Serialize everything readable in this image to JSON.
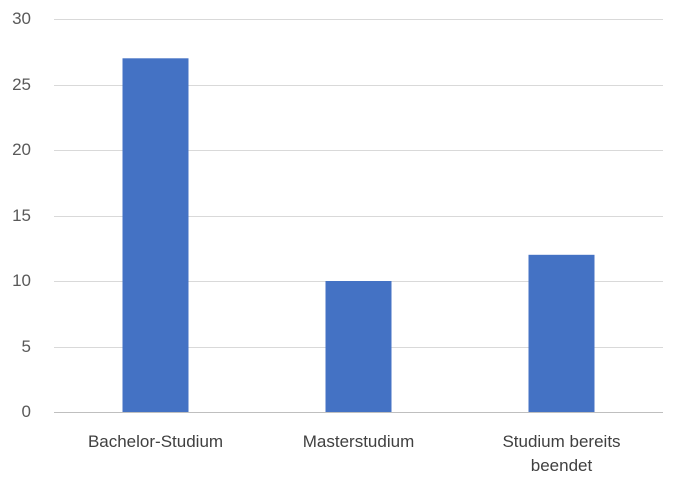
{
  "chart_data": {
    "type": "bar",
    "categories": [
      [
        "Bachelor-Studium"
      ],
      [
        "Masterstudium"
      ],
      [
        "Studium bereits",
        "beendet"
      ]
    ],
    "values": [
      27,
      10,
      12
    ],
    "ylim": [
      0,
      30
    ],
    "yticks": [
      "0",
      "5",
      "10",
      "15",
      "20",
      "25",
      "30"
    ],
    "grid": true,
    "bar_color": "#4472C4",
    "legend": "none"
  }
}
